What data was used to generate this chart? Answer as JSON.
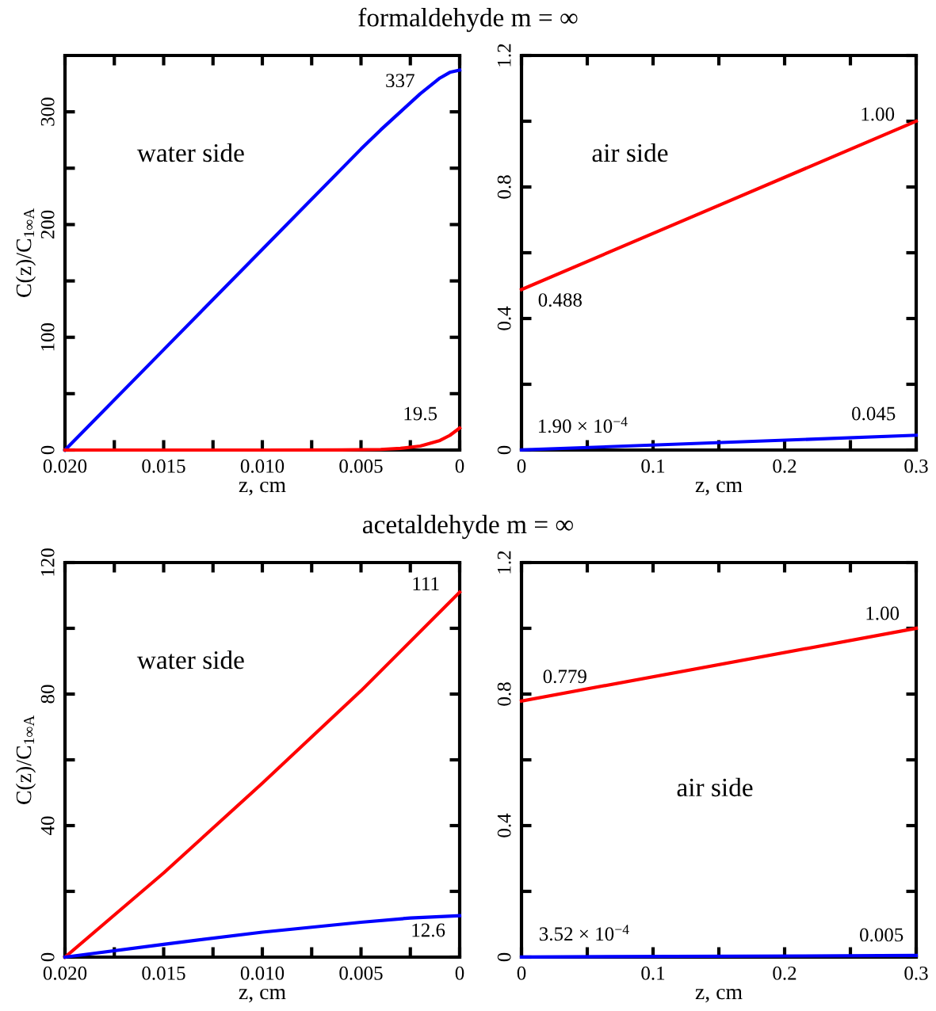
{
  "chart_data": [
    {
      "type": "line",
      "title": "formaldehyde m = ∞",
      "xlabel": "z, cm",
      "ylabel": "C(z)/C$_{1∞A}$",
      "xlim": [
        0.02,
        0
      ],
      "xticks": [
        {
          "value": 0.02,
          "label": "0.020"
        },
        {
          "value": 0.0175,
          "label": null
        },
        {
          "value": 0.015,
          "label": "0.015"
        },
        {
          "value": 0.0125,
          "label": null
        },
        {
          "value": 0.01,
          "label": "0.010"
        },
        {
          "value": 0.0075,
          "label": null
        },
        {
          "value": 0.005,
          "label": "0.005"
        },
        {
          "value": 0.0025,
          "label": null
        },
        0
      ],
      "ylim": [
        0,
        350
      ],
      "yticks": [
        0,
        {
          "value": 50,
          "label": null
        },
        100,
        {
          "value": 150,
          "label": null
        },
        200,
        {
          "value": 250,
          "label": null
        },
        300
      ],
      "grid": false,
      "line_style": "solid",
      "series": [
        {
          "color": "#0000ff",
          "x": [
            0.02,
            0.015,
            0.01,
            0.005,
            0.004,
            0.003,
            0.002,
            0.001,
            0.0005,
            0
          ],
          "values": [
            0,
            89,
            178,
            267,
            284,
            300,
            316,
            330,
            335,
            337
          ]
        },
        {
          "color": "#ff0000",
          "x": [
            0.02,
            0.01,
            0.006,
            0.004,
            0.003,
            0.002,
            0.001,
            0.0005,
            0
          ],
          "values": [
            0,
            0,
            0.1,
            0.5,
            1.5,
            3.5,
            8.5,
            13,
            19.5
          ]
        }
      ],
      "annotations": [
        "water side",
        "337",
        "19.5"
      ]
    },
    {
      "type": "line",
      "xlabel": "z, cm",
      "xlim": [
        0,
        0.3
      ],
      "xticks": [
        0,
        {
          "value": 0.05,
          "label": null
        },
        0.1,
        {
          "value": 0.15,
          "label": null
        },
        0.2,
        {
          "value": 0.25,
          "label": null
        },
        0.3
      ],
      "ylim": [
        0,
        1.2
      ],
      "yticks": [
        0,
        {
          "value": 0.2,
          "label": null
        },
        0.4,
        {
          "value": 0.6,
          "label": null
        },
        0.8,
        {
          "value": 1.0,
          "label": null
        },
        1.2
      ],
      "grid": false,
      "line_style": "solid",
      "series": [
        {
          "color": "#ff0000",
          "x": [
            0,
            0.3
          ],
          "values": [
            0.488,
            1.0
          ]
        },
        {
          "color": "#0000ff",
          "x": [
            0,
            0.3
          ],
          "values": [
            0.00019,
            0.045
          ]
        }
      ],
      "annotations": [
        "air side",
        "1.00",
        "0.488",
        "1.90 × 10$^{−4}$",
        "0.045"
      ]
    },
    {
      "type": "line",
      "title": "acetaldehyde m = ∞",
      "xlabel": "z, cm",
      "ylabel": "C(z)/C$_{1∞A}$",
      "xlim": [
        0.02,
        0
      ],
      "xticks": [
        {
          "value": 0.02,
          "label": "0.020"
        },
        {
          "value": 0.0175,
          "label": null
        },
        {
          "value": 0.015,
          "label": "0.015"
        },
        {
          "value": 0.0125,
          "label": null
        },
        {
          "value": 0.01,
          "label": "0.010"
        },
        {
          "value": 0.0075,
          "label": null
        },
        {
          "value": 0.005,
          "label": "0.005"
        },
        {
          "value": 0.0025,
          "label": null
        },
        0
      ],
      "ylim": [
        0,
        120
      ],
      "yticks": [
        0,
        {
          "value": 20,
          "label": null
        },
        40,
        {
          "value": 60,
          "label": null
        },
        80,
        {
          "value": 100,
          "label": null
        },
        120
      ],
      "grid": false,
      "line_style": "solid",
      "series": [
        {
          "color": "#ff0000",
          "x": [
            0.02,
            0.015,
            0.01,
            0.005,
            0
          ],
          "values": [
            0,
            25.6,
            52.9,
            81,
            111
          ]
        },
        {
          "color": "#0000ff",
          "x": [
            0.02,
            0.015,
            0.01,
            0.005,
            0.0025,
            0
          ],
          "values": [
            0,
            3.9,
            7.6,
            10.6,
            11.9,
            12.6
          ]
        }
      ],
      "annotations": [
        "water side",
        "111",
        "12.6"
      ]
    },
    {
      "type": "line",
      "xlabel": "z, cm",
      "xlim": [
        0,
        0.3
      ],
      "xticks": [
        0,
        {
          "value": 0.05,
          "label": null
        },
        0.1,
        {
          "value": 0.15,
          "label": null
        },
        0.2,
        {
          "value": 0.25,
          "label": null
        },
        0.3
      ],
      "ylim": [
        0,
        1.2
      ],
      "yticks": [
        0,
        {
          "value": 0.2,
          "label": null
        },
        0.4,
        {
          "value": 0.6,
          "label": null
        },
        0.8,
        {
          "value": 1.0,
          "label": null
        },
        1.2
      ],
      "grid": false,
      "line_style": "solid",
      "series": [
        {
          "color": "#ff0000",
          "x": [
            0,
            0.3
          ],
          "values": [
            0.779,
            1.0
          ]
        },
        {
          "color": "#0000ff",
          "x": [
            0,
            0.3
          ],
          "values": [
            0.000352,
            0.005
          ]
        }
      ],
      "annotations": [
        "air side",
        "1.00",
        "0.779",
        "3.52 × 10$^{−4}$",
        "0.005"
      ]
    }
  ]
}
